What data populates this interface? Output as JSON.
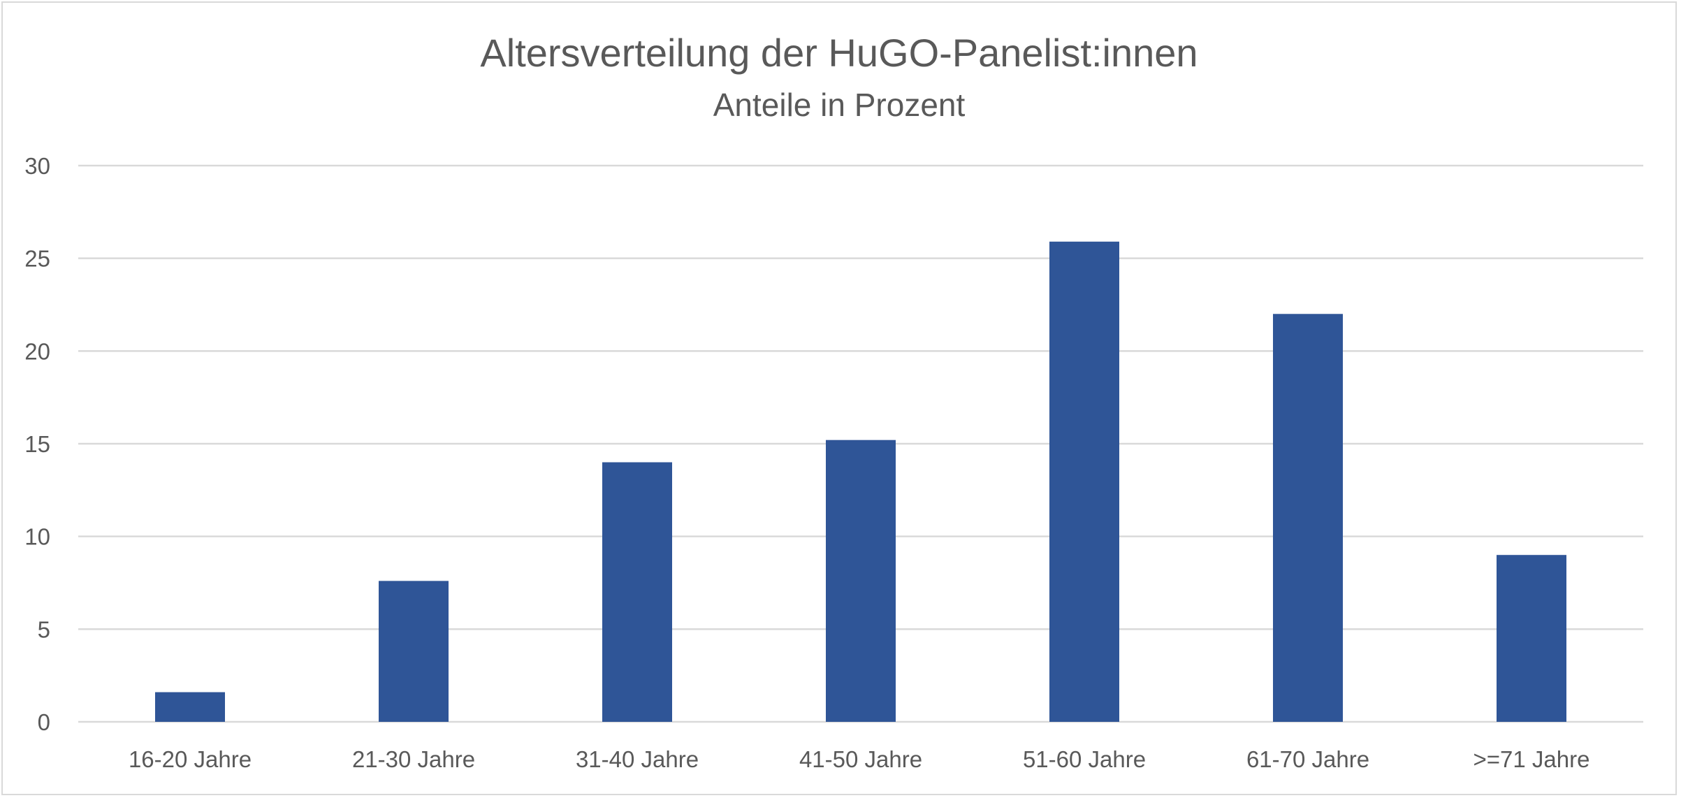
{
  "chart_data": {
    "type": "bar",
    "title": "Altersverteilung der HuGO-Panelist:innen",
    "subtitle": "Anteile in Prozent",
    "xlabel": "",
    "ylabel": "",
    "categories": [
      "16-20 Jahre",
      "21-30 Jahre",
      "31-40 Jahre",
      "41-50 Jahre",
      "51-60 Jahre",
      "61-70 Jahre",
      ">=71 Jahre"
    ],
    "values": [
      1.6,
      7.6,
      14.0,
      15.2,
      25.9,
      22.0,
      9.0
    ],
    "ylim": [
      0,
      30
    ],
    "yticks": [
      "0",
      "5",
      "10",
      "15",
      "20",
      "25",
      "30"
    ],
    "grid": true,
    "legend": "none",
    "colors": {
      "bar": "#2f5597",
      "grid": "#d9d9d9",
      "text": "#595959"
    }
  }
}
